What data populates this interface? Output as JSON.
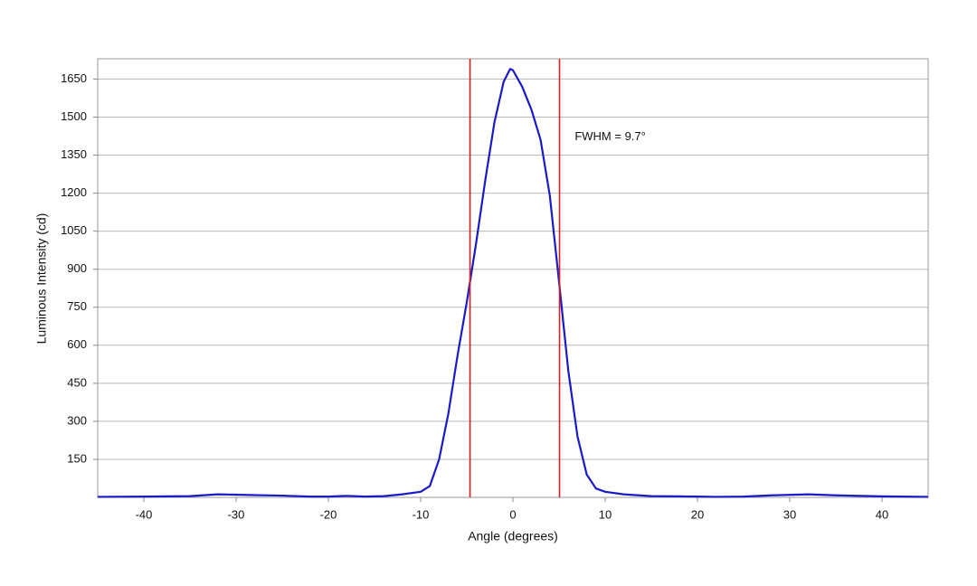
{
  "chart_data": {
    "type": "line",
    "xlabel": "Angle (degrees)",
    "ylabel": "Luminous Intensity (cd)",
    "x": [
      -45,
      -40,
      -35,
      -32,
      -28,
      -25,
      -22,
      -20,
      -18,
      -16,
      -14,
      -12,
      -10,
      -9,
      -8,
      -7,
      -6,
      -5,
      -4,
      -3,
      -2,
      -1,
      -0.3,
      0,
      1,
      2,
      3,
      4,
      5,
      6,
      7,
      8,
      9,
      10,
      12,
      15,
      18,
      20,
      22,
      25,
      28,
      32,
      35,
      40,
      45
    ],
    "series": [
      {
        "color": "#1a1ac8",
        "values": [
          2,
          3,
          5,
          12,
          9,
          7,
          3,
          3,
          6,
          3,
          5,
          12,
          22,
          45,
          150,
          330,
          560,
          770,
          1000,
          1250,
          1480,
          1640,
          1690,
          1685,
          1620,
          1530,
          1410,
          1190,
          850,
          500,
          240,
          90,
          35,
          22,
          12,
          5,
          4,
          3,
          2,
          3,
          8,
          12,
          8,
          4,
          2
        ]
      }
    ],
    "vlines": {
      "color": "#d42020",
      "values": [
        -4.65,
        5.05
      ]
    },
    "annotations": [
      {
        "text": "FWHM = 9.7°",
        "x": 6.7,
        "y": 1421
      }
    ],
    "xlim": [
      -45,
      45
    ],
    "ylim": [
      0,
      1730
    ],
    "xticks": [
      -40,
      -30,
      -20,
      -10,
      0,
      10,
      20,
      30,
      40
    ],
    "yticks": [
      150,
      300,
      450,
      600,
      750,
      900,
      1050,
      1200,
      1350,
      1500,
      1650
    ],
    "grid": true
  }
}
